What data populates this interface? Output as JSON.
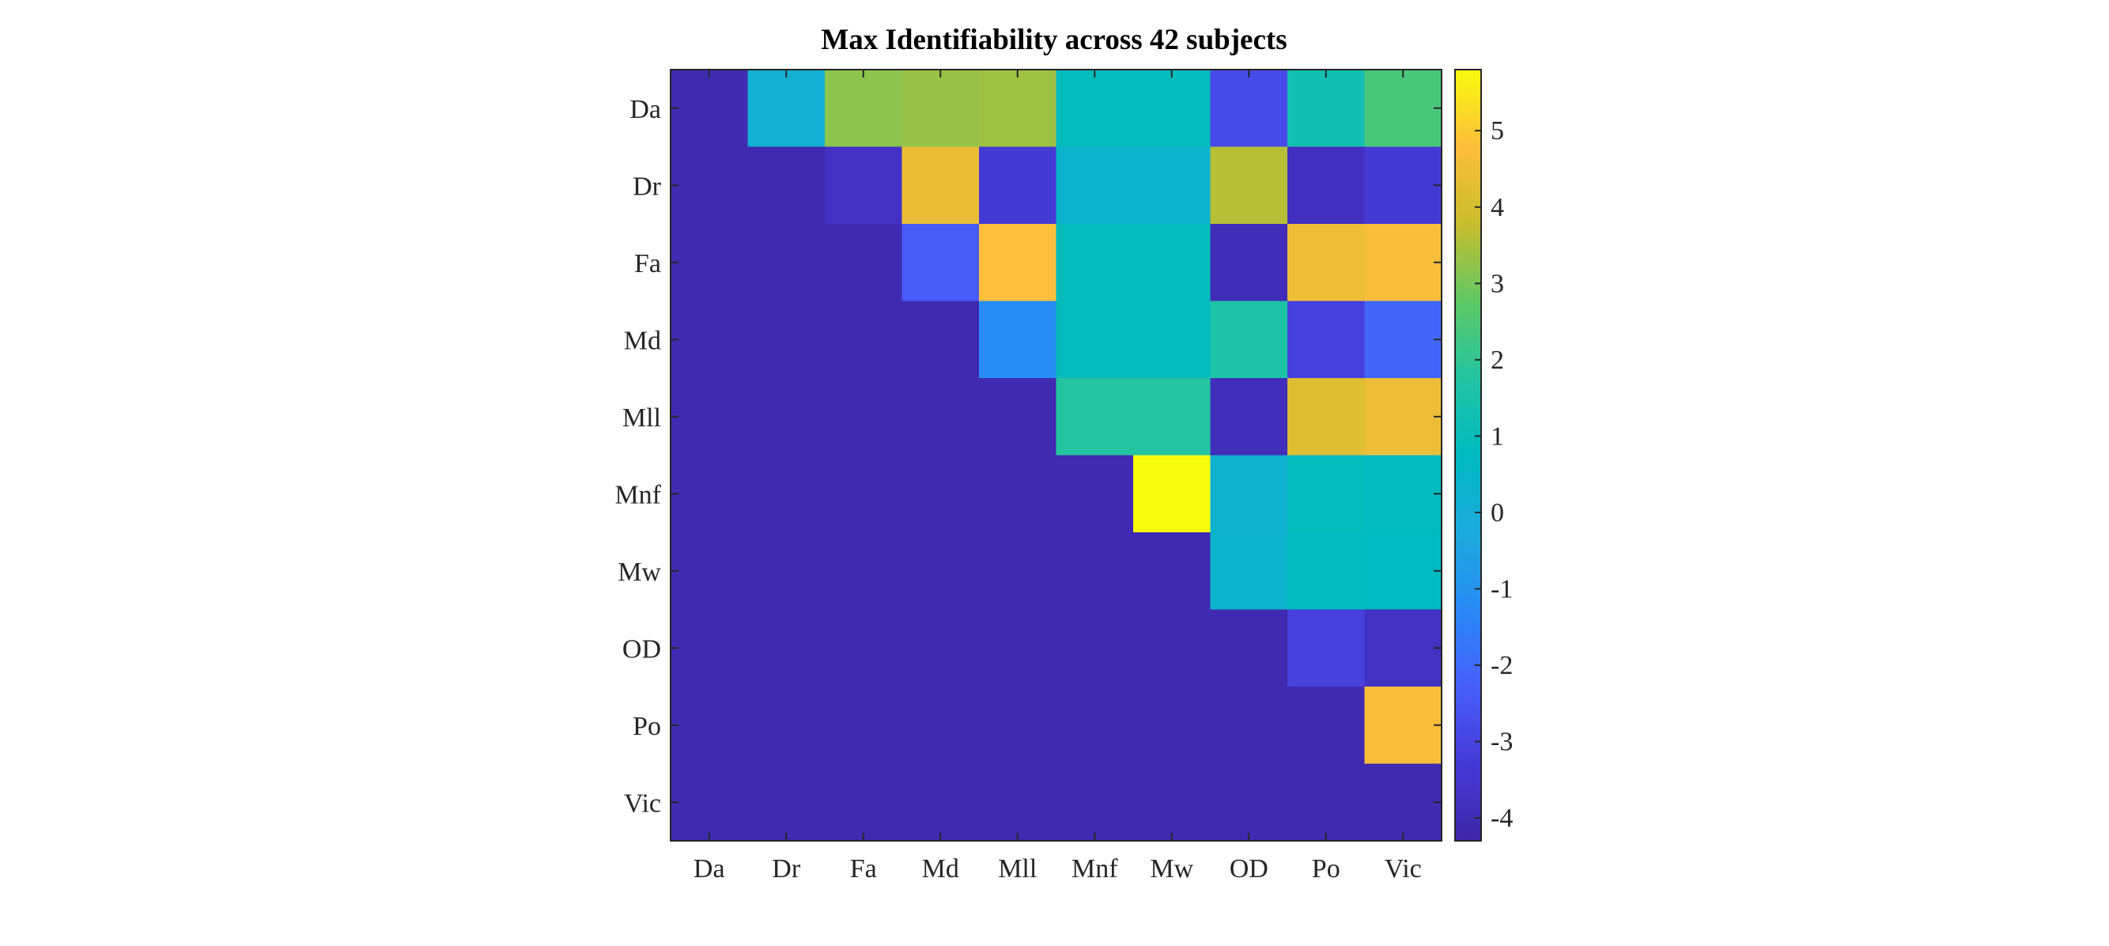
{
  "chart_data": {
    "type": "heatmap",
    "title": "Max Identifiability across 42 subjects",
    "x_categories": [
      "Da",
      "Dr",
      "Fa",
      "Md",
      "Mll",
      "Mnf",
      "Mw",
      "OD",
      "Po",
      "Vic"
    ],
    "y_categories": [
      "Da",
      "Dr",
      "Fa",
      "Md",
      "Mll",
      "Mnf",
      "Mw",
      "OD",
      "Po",
      "Vic"
    ],
    "values": [
      [
        -4.1,
        0.1,
        3.2,
        3.3,
        3.4,
        0.9,
        0.9,
        -2.8,
        1.3,
        2.4
      ],
      [
        -4.1,
        -4.1,
        -3.7,
        4.4,
        -3.3,
        0.3,
        0.3,
        3.6,
        -3.8,
        -3.3
      ],
      [
        -4.1,
        -4.1,
        -4.1,
        -2.4,
        4.8,
        0.9,
        0.9,
        -4.0,
        4.5,
        4.7
      ],
      [
        -4.1,
        -4.1,
        -4.1,
        -4.1,
        -1.2,
        0.9,
        0.9,
        1.6,
        -3.1,
        -2.1
      ],
      [
        -4.1,
        -4.1,
        -4.1,
        -4.1,
        -4.1,
        1.8,
        1.8,
        -3.9,
        4.2,
        4.5
      ],
      [
        -4.1,
        -4.1,
        -4.1,
        -4.1,
        -4.1,
        -4.1,
        5.8,
        0.2,
        0.9,
        0.8
      ],
      [
        -4.1,
        -4.1,
        -4.1,
        -4.1,
        -4.1,
        -4.1,
        -4.1,
        0.3,
        0.8,
        0.7
      ],
      [
        -4.1,
        -4.1,
        -4.1,
        -4.1,
        -4.1,
        -4.1,
        -4.1,
        -4.1,
        -3.1,
        -3.7
      ],
      [
        -4.1,
        -4.1,
        -4.1,
        -4.1,
        -4.1,
        -4.1,
        -4.1,
        -4.1,
        -4.1,
        4.7
      ],
      [
        -4.1,
        -4.1,
        -4.1,
        -4.1,
        -4.1,
        -4.1,
        -4.1,
        -4.1,
        -4.1,
        -4.1
      ]
    ],
    "colorbar": {
      "colormap": "parula",
      "range": [
        -4.3,
        5.8
      ],
      "ticks": [
        -4,
        -3,
        -2,
        -1,
        0,
        1,
        2,
        3,
        4,
        5
      ]
    },
    "grid": false,
    "legend": "colorbar-right"
  }
}
